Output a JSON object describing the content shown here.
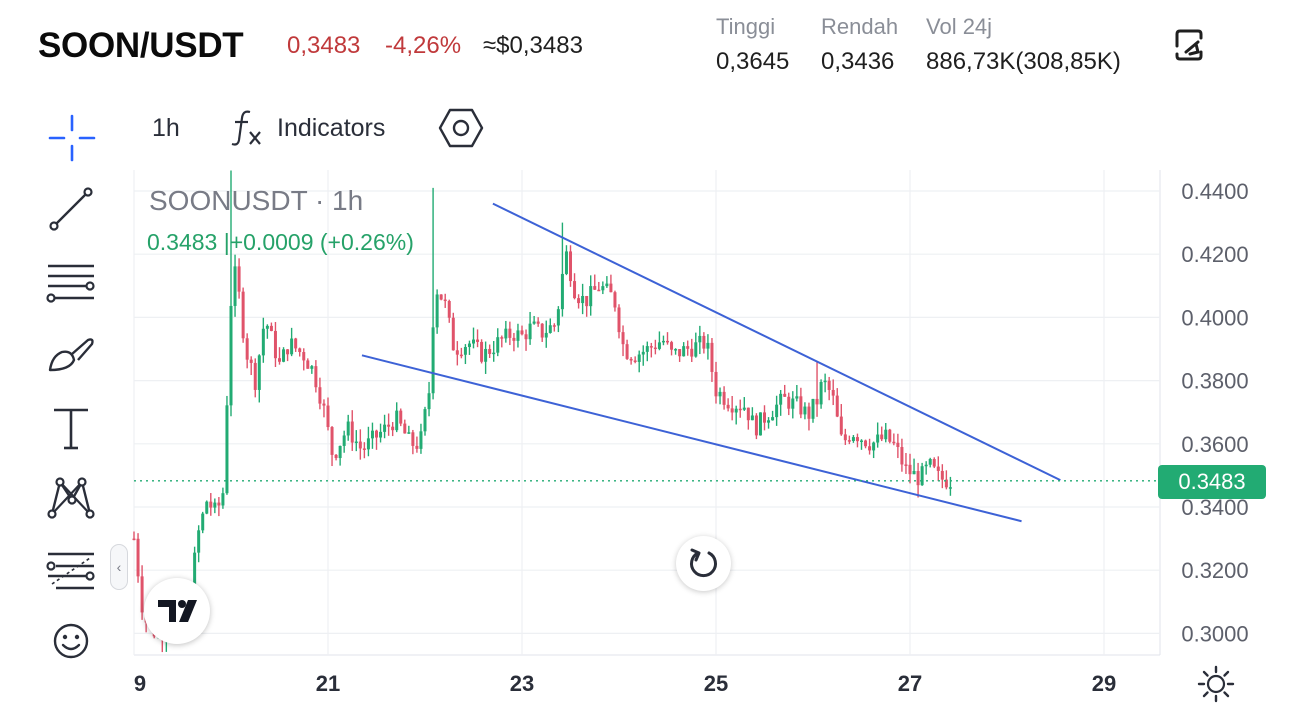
{
  "header": {
    "pair": "SOON/USDT",
    "price": "0,3483",
    "change_pct": "-4,26%",
    "usd_value": "≈$0,3483",
    "stats": [
      {
        "label": "Tinggi",
        "value": "0,3645"
      },
      {
        "label": "Rendah",
        "value": "0,3436"
      },
      {
        "label": "Vol 24j",
        "value": "886,73K(308,85K)"
      }
    ],
    "down_color": "#c0393b"
  },
  "toolbar": {
    "interval": "1h",
    "indicators_label": "Indicators"
  },
  "left_tools": [
    "crosshair-icon",
    "trend-line-icon",
    "horizontal-lines-icon",
    "brush-icon",
    "text-icon",
    "pattern-icon",
    "forecast-icon",
    "emoji-icon"
  ],
  "chart": {
    "legend_symbol": "SOONUSDT · 1h",
    "legend_values": "0.3483 |+0.0009 (+0.26%)",
    "last_price": "0.3483",
    "up_color": "#22ab73",
    "down_color": "#e0536a",
    "line_color": "#3d62d6"
  },
  "chart_data": {
    "type": "candlestick",
    "x_ticks": [
      "9",
      "21",
      "23",
      "25",
      "27",
      "29"
    ],
    "y_ticks": [
      "0.4400",
      "0.4200",
      "0.4000",
      "0.3800",
      "0.3600",
      "0.3400",
      "0.3200",
      "0.3000"
    ],
    "ylim": [
      0.296,
      0.4465
    ],
    "last_price": 0.3483,
    "grid": true,
    "close_path": [
      [
        19.0,
        0.33
      ],
      [
        19.1,
        0.305
      ],
      [
        19.25,
        0.299
      ],
      [
        19.35,
        0.303
      ],
      [
        19.55,
        0.303
      ],
      [
        19.65,
        0.33
      ],
      [
        19.75,
        0.342
      ],
      [
        19.85,
        0.338
      ],
      [
        19.92,
        0.345
      ],
      [
        20.0,
        0.405
      ],
      [
        20.05,
        0.415
      ],
      [
        20.15,
        0.39
      ],
      [
        20.25,
        0.38
      ],
      [
        20.35,
        0.4
      ],
      [
        20.5,
        0.385
      ],
      [
        20.6,
        0.392
      ],
      [
        20.75,
        0.388
      ],
      [
        20.85,
        0.383
      ],
      [
        20.95,
        0.372
      ],
      [
        21.05,
        0.356
      ],
      [
        21.2,
        0.365
      ],
      [
        21.35,
        0.358
      ],
      [
        21.45,
        0.361
      ],
      [
        21.6,
        0.365
      ],
      [
        21.7,
        0.368
      ],
      [
        21.85,
        0.36
      ],
      [
        21.95,
        0.36
      ],
      [
        22.05,
        0.378
      ],
      [
        22.1,
        0.41
      ],
      [
        22.2,
        0.405
      ],
      [
        22.3,
        0.39
      ],
      [
        22.45,
        0.392
      ],
      [
        22.6,
        0.388
      ],
      [
        22.75,
        0.392
      ],
      [
        22.9,
        0.395
      ],
      [
        23.0,
        0.394
      ],
      [
        23.1,
        0.397
      ],
      [
        23.2,
        0.395
      ],
      [
        23.35,
        0.398
      ],
      [
        23.45,
        0.421
      ],
      [
        23.55,
        0.408
      ],
      [
        23.65,
        0.405
      ],
      [
        23.8,
        0.41
      ],
      [
        23.95,
        0.406
      ],
      [
        24.05,
        0.39
      ],
      [
        24.15,
        0.388
      ],
      [
        24.3,
        0.39
      ],
      [
        24.45,
        0.393
      ],
      [
        24.55,
        0.388
      ],
      [
        24.7,
        0.39
      ],
      [
        24.9,
        0.392
      ],
      [
        25.0,
        0.377
      ],
      [
        25.15,
        0.373
      ],
      [
        25.3,
        0.372
      ],
      [
        25.4,
        0.365
      ],
      [
        25.55,
        0.37
      ],
      [
        25.7,
        0.374
      ],
      [
        25.85,
        0.372
      ],
      [
        25.95,
        0.369
      ],
      [
        26.05,
        0.374
      ],
      [
        26.1,
        0.38
      ],
      [
        26.2,
        0.375
      ],
      [
        26.3,
        0.36
      ],
      [
        26.4,
        0.364
      ],
      [
        26.5,
        0.362
      ],
      [
        26.6,
        0.36
      ],
      [
        26.75,
        0.362
      ],
      [
        26.85,
        0.359
      ],
      [
        26.95,
        0.352
      ],
      [
        27.1,
        0.349
      ],
      [
        27.2,
        0.353
      ],
      [
        27.3,
        0.349
      ],
      [
        27.45,
        0.3483
      ]
    ],
    "spikes": [
      {
        "x": 20.0,
        "high": 0.4465
      },
      {
        "x": 22.1,
        "high": 0.441
      },
      {
        "x": 23.4,
        "high": 0.43
      },
      {
        "x": 26.05,
        "high": 0.386
      }
    ],
    "trendlines": [
      {
        "from": [
          22.7,
          0.436
        ],
        "to": [
          28.55,
          0.3485
        ]
      },
      {
        "from": [
          21.35,
          0.388
        ],
        "to": [
          28.15,
          0.3355
        ]
      }
    ]
  }
}
